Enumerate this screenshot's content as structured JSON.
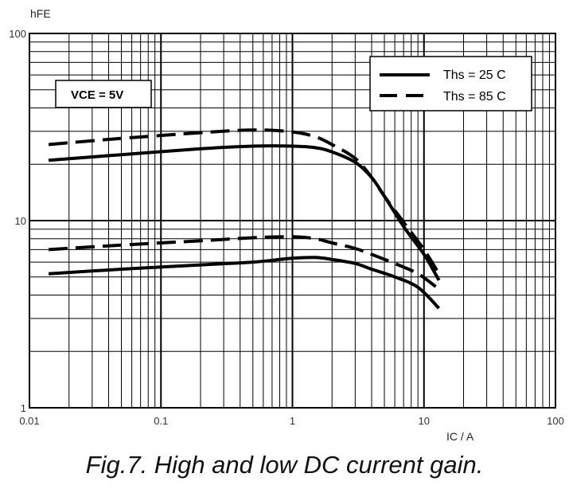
{
  "caption": "Fig.7.   High and low DC current gain.",
  "chart_data": {
    "type": "line",
    "ylabel": "hFE",
    "xlabel": "IC / A",
    "xscale": "log",
    "yscale": "log",
    "xlim": [
      0.01,
      100
    ],
    "ylim": [
      1,
      100
    ],
    "x_tick_labels": [
      "0.01",
      "0.1",
      "1",
      "10",
      "100"
    ],
    "y_tick_labels": [
      "1",
      "10",
      "100"
    ],
    "grid": true,
    "annotation": "VCE = 5V",
    "legend": {
      "placement": "top-right",
      "entries": [
        {
          "label": "Ths = 25 C",
          "style": "solid"
        },
        {
          "label": "Ths = 85 C",
          "style": "dashed"
        }
      ]
    },
    "series": [
      {
        "legend": "Ths = 25 C",
        "style": "solid",
        "x": [
          0.014,
          0.05,
          0.2,
          0.5,
          1,
          1.5,
          2,
          3,
          4,
          5,
          7,
          10,
          13
        ],
        "y": [
          21,
          22.5,
          24.2,
          25,
          25,
          24.5,
          23.3,
          20.5,
          17,
          13.5,
          9.3,
          6.6,
          4.8
        ]
      },
      {
        "legend": "Ths = 85 C",
        "style": "dashed",
        "x": [
          0.014,
          0.05,
          0.2,
          0.5,
          1,
          1.5,
          2,
          3,
          4,
          5,
          7,
          10,
          13
        ],
        "y": [
          25.5,
          27.5,
          29.5,
          30.5,
          29.8,
          28,
          25.5,
          21.5,
          17,
          13.5,
          9.8,
          7,
          5.2
        ]
      },
      {
        "legend": "Ths = 25 C",
        "style": "solid",
        "x": [
          0.014,
          0.05,
          0.2,
          0.5,
          0.8,
          1,
          1.5,
          2,
          3,
          4,
          6,
          9,
          13
        ],
        "y": [
          5.2,
          5.5,
          5.8,
          6,
          6.2,
          6.3,
          6.35,
          6.2,
          5.9,
          5.5,
          5,
          4.4,
          3.4
        ]
      },
      {
        "legend": "Ths = 85 C",
        "style": "dashed",
        "x": [
          0.014,
          0.05,
          0.2,
          0.5,
          1,
          1.5,
          2,
          3,
          4,
          6,
          9,
          13
        ],
        "y": [
          7,
          7.4,
          7.8,
          8.1,
          8.2,
          8,
          7.6,
          7.1,
          6.6,
          5.9,
          5.2,
          4.3
        ]
      }
    ]
  }
}
